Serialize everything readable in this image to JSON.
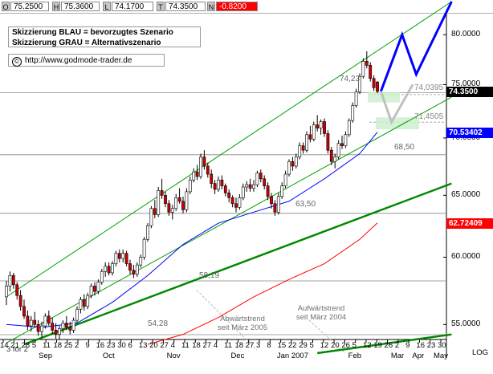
{
  "header": {
    "fields": [
      {
        "label": "O",
        "value": "75.2500"
      },
      {
        "label": "H",
        "value": "75.3600"
      },
      {
        "label": "L",
        "value": "74.1700"
      },
      {
        "label": "T",
        "value": "74.3500"
      },
      {
        "label": "N",
        "value": "-0.8200"
      }
    ],
    "change_color": "#ff0000"
  },
  "legend": {
    "line1": "Skizzierung BLAU = bevorzugtes Szenario",
    "line2": "Skizzierung GRAU = Alternativszenario",
    "url": "http://www.godmode-trader.de",
    "copyright_symbol": "©"
  },
  "annotations": {
    "level_7423": "74,23",
    "level_7403": "74,0395",
    "level_7145": "71,4505",
    "level_6850": "68,50",
    "level_6350": "63,50",
    "level_5819": "58,19",
    "level_5428": "54,28",
    "abwaerts_line1": "Abwärtstrend",
    "abwaerts_line2": "seit März 2005",
    "aufwaerts_line1": "Aufwärtstrend",
    "aufwaerts_line2": "seit März 2004",
    "split": "3 for 2",
    "log_label": "LOG"
  },
  "price_boxes": [
    {
      "value": "74.3500",
      "color": "#000000",
      "price": 74.35
    },
    {
      "value": "70.53402",
      "color": "#0000ff",
      "price": 70.534
    },
    {
      "value": "62.72409",
      "color": "#ff0000",
      "price": 62.724
    }
  ],
  "chart_data": {
    "type": "candlestick",
    "title": "",
    "xlabel": "",
    "ylabel": "",
    "scale": "log",
    "ylim": [
      53.0,
      83.5
    ],
    "y_ticks": [
      {
        "value": 55,
        "label": "55.0000"
      },
      {
        "value": 60,
        "label": "60.0000"
      },
      {
        "value": 65,
        "label": "65.0000"
      },
      {
        "value": 70,
        "label": "70.0000"
      },
      {
        "value": 75,
        "label": "75.0000"
      },
      {
        "value": 80,
        "label": "80.0000"
      }
    ],
    "x_day_ticks": [
      "14",
      "21",
      "28",
      "5",
      "11",
      "18",
      "25",
      "2",
      "9",
      "16",
      "23",
      "30",
      "6",
      "13",
      "20",
      "27",
      "4",
      "11",
      "18",
      "27",
      "4",
      "11",
      "18",
      "27",
      "3",
      "8",
      "15",
      "22",
      "29",
      "5",
      "12",
      "20",
      "26",
      "5",
      "12",
      "19",
      "26",
      "2",
      "9",
      "16",
      "23",
      "30"
    ],
    "x_month_ticks": [
      "Sep",
      "Oct",
      "Nov",
      "Dec",
      "Jan 2007",
      "Feb",
      "Mar",
      "Apr",
      "May"
    ],
    "horizontal_levels": [
      74.23,
      74.04,
      71.45,
      68.5,
      63.5,
      58.19,
      54.28
    ],
    "candles": [
      [
        57.0,
        58.2,
        56.4,
        57.8
      ],
      [
        57.8,
        58.9,
        57.4,
        58.6
      ],
      [
        58.6,
        58.8,
        57.6,
        57.9
      ],
      [
        57.9,
        58.1,
        56.8,
        57.1
      ],
      [
        57.1,
        57.5,
        56.0,
        56.3
      ],
      [
        56.3,
        56.8,
        55.4,
        55.6
      ],
      [
        55.6,
        56.0,
        54.6,
        54.9
      ],
      [
        54.9,
        55.6,
        54.5,
        55.3
      ],
      [
        55.3,
        55.9,
        54.8,
        55.0
      ],
      [
        55.0,
        55.3,
        54.2,
        54.5
      ],
      [
        54.5,
        55.2,
        54.1,
        54.9
      ],
      [
        54.9,
        55.8,
        54.7,
        55.6
      ],
      [
        55.6,
        56.0,
        54.9,
        55.1
      ],
      [
        55.1,
        55.5,
        54.3,
        54.6
      ],
      [
        54.6,
        55.1,
        54.0,
        54.3
      ],
      [
        54.3,
        54.9,
        53.9,
        54.7
      ],
      [
        54.7,
        55.3,
        54.4,
        55.1
      ],
      [
        55.1,
        55.6,
        54.6,
        54.8
      ],
      [
        54.8,
        55.2,
        54.3,
        54.6
      ],
      [
        54.6,
        55.5,
        54.4,
        55.3
      ],
      [
        55.3,
        56.3,
        55.1,
        56.1
      ],
      [
        56.1,
        57.0,
        55.8,
        56.8
      ],
      [
        56.8,
        57.2,
        56.0,
        56.3
      ],
      [
        56.3,
        57.3,
        56.1,
        57.1
      ],
      [
        57.1,
        58.0,
        56.9,
        57.8
      ],
      [
        57.8,
        58.1,
        57.1,
        57.4
      ],
      [
        57.4,
        58.3,
        57.2,
        58.1
      ],
      [
        58.1,
        59.1,
        57.9,
        58.9
      ],
      [
        58.9,
        59.6,
        58.5,
        59.3
      ],
      [
        59.3,
        59.6,
        58.6,
        58.8
      ],
      [
        58.8,
        59.7,
        58.6,
        59.5
      ],
      [
        59.5,
        60.5,
        59.3,
        60.3
      ],
      [
        60.3,
        60.6,
        59.6,
        59.9
      ],
      [
        59.9,
        60.6,
        59.6,
        60.3
      ],
      [
        60.3,
        60.5,
        59.3,
        59.5
      ],
      [
        59.5,
        59.8,
        58.7,
        59.0
      ],
      [
        59.0,
        59.4,
        58.4,
        58.7
      ],
      [
        58.7,
        59.6,
        58.5,
        59.4
      ],
      [
        59.4,
        60.2,
        59.2,
        60.0
      ],
      [
        60.0,
        61.6,
        59.8,
        61.4
      ],
      [
        61.4,
        62.7,
        61.2,
        62.5
      ],
      [
        62.5,
        64.1,
        62.3,
        63.9
      ],
      [
        63.9,
        64.6,
        63.1,
        63.4
      ],
      [
        63.4,
        65.7,
        63.2,
        65.4
      ],
      [
        65.4,
        66.4,
        64.7,
        65.0
      ],
      [
        65.0,
        65.3,
        64.0,
        64.3
      ],
      [
        64.3,
        64.6,
        63.3,
        63.6
      ],
      [
        63.6,
        64.2,
        63.0,
        63.9
      ],
      [
        63.9,
        65.1,
        63.7,
        64.8
      ],
      [
        64.8,
        65.6,
        64.3,
        64.5
      ],
      [
        64.5,
        64.9,
        63.5,
        63.8
      ],
      [
        63.8,
        65.6,
        63.6,
        65.3
      ],
      [
        65.3,
        66.6,
        65.1,
        66.3
      ],
      [
        66.3,
        67.3,
        66.1,
        67.0
      ],
      [
        67.0,
        67.6,
        66.3,
        66.6
      ],
      [
        66.6,
        68.6,
        66.4,
        68.3
      ],
      [
        68.3,
        68.9,
        67.2,
        67.5
      ],
      [
        67.5,
        67.8,
        66.5,
        66.8
      ],
      [
        66.8,
        67.2,
        65.6,
        66.0
      ],
      [
        66.0,
        66.3,
        65.1,
        65.5
      ],
      [
        65.5,
        66.6,
        65.3,
        66.3
      ],
      [
        66.3,
        66.7,
        65.5,
        65.8
      ],
      [
        65.8,
        66.0,
        64.9,
        65.2
      ],
      [
        65.2,
        65.5,
        64.4,
        64.8
      ],
      [
        64.8,
        65.0,
        64.0,
        64.3
      ],
      [
        64.3,
        64.8,
        63.6,
        64.0
      ],
      [
        64.0,
        65.1,
        63.8,
        64.8
      ],
      [
        64.8,
        66.0,
        64.6,
        65.7
      ],
      [
        65.7,
        66.2,
        65.3,
        65.9
      ],
      [
        65.9,
        66.4,
        65.3,
        65.6
      ],
      [
        65.6,
        66.3,
        65.3,
        65.9
      ],
      [
        65.9,
        67.1,
        65.7,
        66.9
      ],
      [
        66.9,
        67.2,
        66.1,
        66.4
      ],
      [
        66.4,
        66.7,
        65.5,
        65.8
      ],
      [
        65.8,
        66.1,
        64.6,
        64.9
      ],
      [
        64.9,
        65.2,
        63.9,
        64.3
      ],
      [
        64.3,
        64.6,
        63.3,
        63.6
      ],
      [
        63.6,
        65.2,
        63.4,
        64.9
      ],
      [
        64.9,
        66.1,
        64.7,
        65.8
      ],
      [
        65.8,
        67.1,
        65.6,
        66.8
      ],
      [
        66.8,
        68.1,
        66.6,
        67.9
      ],
      [
        67.9,
        68.3,
        67.1,
        67.5
      ],
      [
        67.5,
        68.6,
        67.3,
        68.3
      ],
      [
        68.3,
        69.6,
        68.1,
        69.3
      ],
      [
        69.3,
        69.6,
        68.6,
        68.9
      ],
      [
        68.9,
        70.6,
        68.7,
        70.3
      ],
      [
        70.3,
        71.1,
        69.6,
        69.9
      ],
      [
        69.9,
        71.5,
        69.7,
        71.2
      ],
      [
        71.2,
        72.1,
        70.6,
        70.9
      ],
      [
        70.9,
        71.7,
        70.3,
        71.5
      ],
      [
        71.5,
        71.8,
        70.1,
        70.4
      ],
      [
        70.4,
        70.7,
        68.6,
        68.9
      ],
      [
        68.9,
        69.2,
        67.6,
        67.9
      ],
      [
        67.9,
        68.6,
        67.3,
        68.3
      ],
      [
        68.3,
        69.8,
        68.1,
        69.5
      ],
      [
        69.5,
        70.2,
        69.0,
        69.3
      ],
      [
        69.3,
        70.6,
        69.1,
        70.3
      ],
      [
        70.3,
        71.8,
        70.1,
        71.6
      ],
      [
        71.6,
        73.3,
        71.4,
        73.0
      ],
      [
        73.0,
        74.6,
        72.8,
        74.3
      ],
      [
        74.3,
        76.1,
        74.1,
        75.8
      ],
      [
        75.8,
        77.6,
        75.6,
        77.3
      ],
      [
        77.3,
        78.3,
        76.6,
        76.9
      ],
      [
        76.9,
        77.2,
        75.3,
        75.6
      ],
      [
        75.6,
        75.9,
        74.4,
        74.7
      ],
      [
        75.25,
        75.36,
        74.17,
        74.35
      ]
    ],
    "series": [
      {
        "name": "",
        "kind": "moving_average",
        "color": "#0000ff",
        "values": [
          [
            0,
            55.0
          ],
          [
            10,
            54.8
          ],
          [
            20,
            55.1
          ],
          [
            30,
            56.6
          ],
          [
            40,
            58.6
          ],
          [
            50,
            61.0
          ],
          [
            60,
            62.7
          ],
          [
            70,
            63.6
          ],
          [
            80,
            64.5
          ],
          [
            90,
            66.4
          ],
          [
            100,
            68.6
          ],
          [
            105,
            70.53
          ]
        ]
      },
      {
        "name": "",
        "kind": "moving_average",
        "color": "#ff0000",
        "values": [
          [
            40,
            53.6
          ],
          [
            50,
            54.3
          ],
          [
            60,
            55.5
          ],
          [
            70,
            57.0
          ],
          [
            80,
            58.3
          ],
          [
            90,
            59.5
          ],
          [
            100,
            61.4
          ],
          [
            105,
            62.72
          ]
        ]
      }
    ],
    "trend_lines": [
      {
        "color": "#00a000",
        "from": [
          0,
          57.0
        ],
        "to": [
          126,
          83.5
        ]
      },
      {
        "color": "#00a000",
        "from": [
          0,
          53.7
        ],
        "to": [
          126,
          73.8
        ]
      },
      {
        "color": "#008800",
        "from": [
          5,
          53.6
        ],
        "to": [
          126,
          66.0
        ]
      },
      {
        "color": "#008800",
        "from": [
          88,
          53.0
        ],
        "to": [
          126,
          54.3
        ]
      }
    ],
    "scenarios": [
      {
        "name": "bevorzugtes Szenario",
        "color": "#0000ff",
        "points": [
          [
            106,
            74.35
          ],
          [
            112,
            80.0
          ],
          [
            116,
            76.0
          ],
          [
            126,
            83.5
          ]
        ]
      },
      {
        "name": "Alternativszenario",
        "color": "#c0c0c0",
        "points": [
          [
            106,
            74.35
          ],
          [
            109,
            71.45
          ],
          [
            115,
            75.0
          ]
        ]
      }
    ],
    "grid": false,
    "legend": "top-left"
  }
}
